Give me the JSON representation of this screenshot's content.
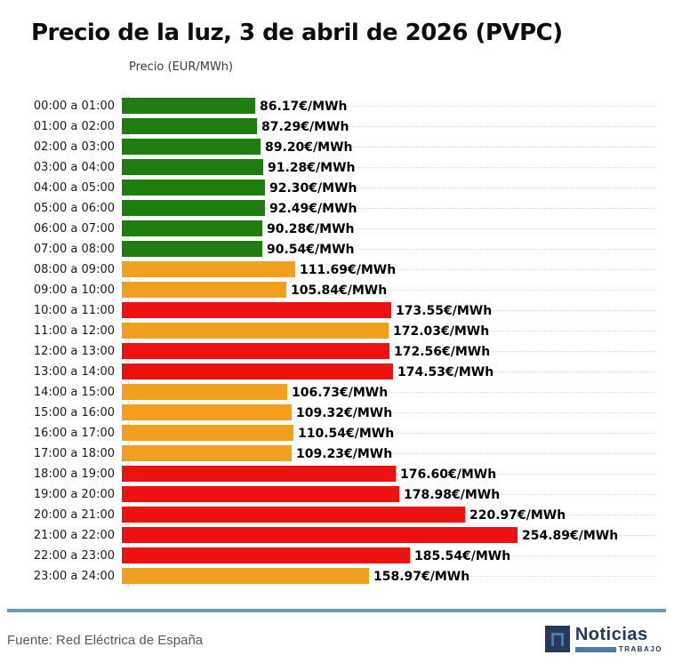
{
  "page": {
    "title": "Precio de la luz, 3 de abril de 2026 (PVPC)",
    "axis_label": "Precio (EUR/MWh)"
  },
  "chart_data": {
    "type": "bar",
    "orientation": "horizontal",
    "title": "Precio de la luz, 3 de abril de 2026 (PVPC)",
    "xlabel": "Precio (EUR/MWh)",
    "ylabel": "",
    "grid": "dotted horizontal line per row",
    "legend_position": "none",
    "categories": [
      "00:00 a 01:00",
      "01:00 a 02:00",
      "02:00 a 03:00",
      "03:00 a 04:00",
      "04:00 a 05:00",
      "05:00 a 06:00",
      "06:00 a 07:00",
      "07:00 a 08:00",
      "08:00 a 09:00",
      "09:00 a 10:00",
      "10:00 a 11:00",
      "11:00 a 12:00",
      "12:00 a 13:00",
      "13:00 a 14:00",
      "14:00 a 15:00",
      "15:00 a 16:00",
      "16:00 a 17:00",
      "17:00 a 18:00",
      "18:00 a 19:00",
      "19:00 a 20:00",
      "20:00 a 21:00",
      "21:00 a 22:00",
      "22:00 a 23:00",
      "23:00 a 24:00"
    ],
    "values": [
      86.17,
      87.29,
      89.2,
      91.28,
      92.3,
      92.49,
      90.28,
      90.54,
      111.69,
      105.84,
      173.55,
      172.03,
      172.56,
      174.53,
      106.73,
      109.32,
      110.54,
      109.23,
      176.6,
      178.98,
      220.97,
      254.89,
      185.54,
      158.97
    ],
    "value_labels": [
      "86.17€/MWh",
      "87.29€/MWh",
      "89.20€/MWh",
      "91.28€/MWh",
      "92.30€/MWh",
      "92.49€/MWh",
      "90.28€/MWh",
      "90.54€/MWh",
      "111.69€/MWh",
      "105.84€/MWh",
      "173.55€/MWh",
      "172.03€/MWh",
      "172.56€/MWh",
      "174.53€/MWh",
      "106.73€/MWh",
      "109.32€/MWh",
      "110.54€/MWh",
      "109.23€/MWh",
      "176.60€/MWh",
      "178.98€/MWh",
      "220.97€/MWh",
      "254.89€/MWh",
      "185.54€/MWh",
      "158.97€/MWh"
    ],
    "levels": [
      "green",
      "green",
      "green",
      "green",
      "green",
      "green",
      "green",
      "green",
      "orange",
      "orange",
      "red",
      "orange",
      "red",
      "red",
      "orange",
      "orange",
      "orange",
      "orange",
      "red",
      "red",
      "red",
      "red",
      "red",
      "orange"
    ],
    "palette": {
      "green": "#1E7D0E",
      "orange": "#F0A01E",
      "red": "#EE1111"
    }
  },
  "footer": {
    "source": "Fuente: Red Eléctrica de España",
    "divider_color": "#6E9AB0",
    "logo": {
      "icon": "n-square-icon",
      "name": "Noticias",
      "tagline": "TRABAJO",
      "navy": "#24395B",
      "steel_blue": "#4D7BA6"
    }
  }
}
